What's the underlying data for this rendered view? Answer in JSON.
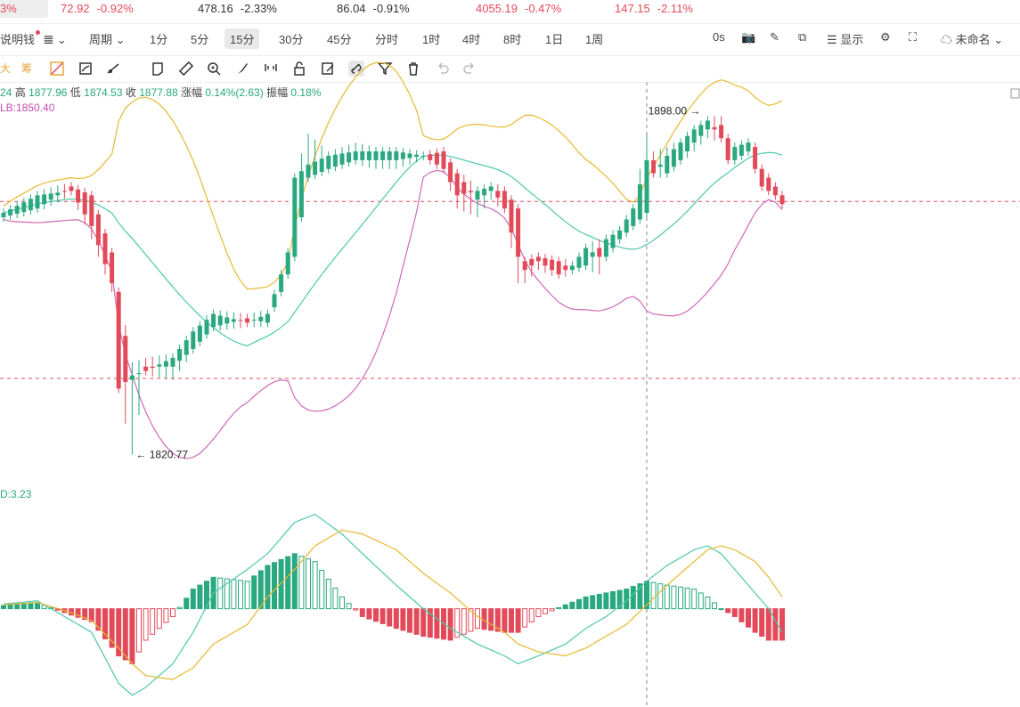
{
  "ticker": [
    {
      "price": "72.92",
      "chg": "-0.92%"
    },
    {
      "price": "478.16",
      "chg": "-2.33%"
    },
    {
      "price": "86.04",
      "chg": "-0.91%"
    },
    {
      "price": "4055.19",
      "chg": "-0.47%"
    },
    {
      "price": "147.15",
      "chg": "-2.11%"
    }
  ],
  "ticker_partial": "3%",
  "toolbar": {
    "symbol": "说明钱",
    "period": "周期",
    "intervals": [
      "1分",
      "5分",
      "15分",
      "30分",
      "45分",
      "分时",
      "1时",
      "4时",
      "8时",
      "1日",
      "1周"
    ],
    "selected": "15分",
    "zero": "0s",
    "display": "显示",
    "unnamed": "未命名"
  },
  "draw_tools_left": [
    "大",
    "筹"
  ],
  "ohlc": {
    "open_tail": "24",
    "high_label": "高",
    "high": "1877.96",
    "low_label": "低",
    "low": "1874.53",
    "close_label": "收",
    "close": "1877.88",
    "chg_label": "涨幅",
    "chg": "0.14%(2.63)",
    "amp_label": "振幅",
    "amp": "0.18%"
  },
  "lb_label": "LB:1850.40",
  "macd_label": "D:3.23",
  "colors": {
    "up": "#2aa87f",
    "down": "#e24a5a",
    "upper": "#e8b931",
    "mid": "#4fc8a8",
    "lower": "#d06ab8",
    "dif": "#4fc8a8",
    "dea": "#e8b931"
  },
  "chart_data": {
    "type": "candlestick",
    "high_mark": "1898.00",
    "low_mark": "1820.77",
    "ylim": [
      1815,
      1905
    ],
    "hlines": [
      1878.6,
      1838.3
    ],
    "crosshair_index": 95,
    "keypoints": [
      [
        0,
        1875,
        1876,
        1877,
        1874
      ],
      [
        5,
        1877,
        1880,
        1881,
        1876
      ],
      [
        10,
        1882,
        1881,
        1883,
        1880
      ],
      [
        13,
        1880,
        1873,
        1881,
        1870
      ],
      [
        16,
        1867,
        1860,
        1868,
        1858
      ],
      [
        17,
        1858,
        1836,
        1859,
        1835
      ],
      [
        19,
        1838,
        1839,
        1842,
        1821
      ],
      [
        21,
        1841,
        1840,
        1843,
        1839
      ],
      [
        25,
        1841,
        1843,
        1844,
        1838
      ],
      [
        28,
        1845,
        1849,
        1850,
        1844
      ],
      [
        31,
        1850,
        1853,
        1854,
        1849
      ],
      [
        36,
        1852,
        1851,
        1853,
        1850
      ],
      [
        39,
        1851,
        1853,
        1854,
        1850
      ],
      [
        41,
        1858,
        1862,
        1863,
        1857
      ],
      [
        42,
        1862,
        1867,
        1868,
        1861
      ],
      [
        43,
        1866,
        1884,
        1885,
        1865
      ],
      [
        45,
        1884,
        1887,
        1894,
        1883
      ],
      [
        48,
        1886,
        1889,
        1890,
        1885
      ],
      [
        52,
        1888,
        1890,
        1892,
        1887
      ],
      [
        55,
        1888,
        1890,
        1891,
        1886
      ],
      [
        58,
        1888,
        1890,
        1891,
        1886
      ],
      [
        62,
        1889,
        1889,
        1890,
        1888
      ],
      [
        65,
        1890,
        1886,
        1891,
        1885
      ],
      [
        67,
        1885,
        1880,
        1886,
        1877
      ],
      [
        70,
        1879,
        1881,
        1882,
        1875
      ],
      [
        72,
        1881,
        1882,
        1883,
        1879
      ],
      [
        74,
        1881,
        1877,
        1882,
        1876
      ],
      [
        76,
        1877,
        1866,
        1878,
        1860
      ],
      [
        77,
        1865,
        1863,
        1866,
        1860
      ],
      [
        79,
        1866,
        1865,
        1867,
        1863
      ],
      [
        82,
        1865,
        1862,
        1866,
        1861
      ],
      [
        84,
        1863,
        1864,
        1865,
        1862
      ],
      [
        86,
        1864,
        1868,
        1869,
        1863
      ],
      [
        88,
        1868,
        1866,
        1870,
        1862
      ],
      [
        89,
        1866,
        1870,
        1871,
        1865
      ],
      [
        91,
        1870,
        1872,
        1873,
        1869
      ],
      [
        93,
        1873,
        1877,
        1878,
        1872
      ],
      [
        95,
        1876,
        1888,
        1894,
        1875
      ],
      [
        96,
        1888,
        1885,
        1890,
        1884
      ],
      [
        98,
        1885,
        1889,
        1891,
        1884
      ],
      [
        100,
        1888,
        1892,
        1893,
        1887
      ],
      [
        102,
        1892,
        1895,
        1896,
        1890
      ],
      [
        104,
        1895,
        1897,
        1898,
        1893
      ],
      [
        106,
        1896,
        1893,
        1898,
        1892
      ],
      [
        107,
        1893,
        1888,
        1894,
        1887
      ],
      [
        108,
        1888,
        1891,
        1892,
        1887
      ],
      [
        110,
        1890,
        1892,
        1893,
        1889
      ],
      [
        111,
        1891,
        1886,
        1892,
        1885
      ],
      [
        112,
        1886,
        1882,
        1887,
        1881
      ],
      [
        114,
        1882,
        1880,
        1883,
        1879
      ],
      [
        115,
        1880,
        1878,
        1881,
        1877
      ]
    ],
    "macd_keypoints": [
      [
        0,
        1.2,
        1.0,
        0.8
      ],
      [
        5,
        2.0,
        1.6,
        1.5
      ],
      [
        10,
        -3,
        -1,
        -1.6
      ],
      [
        13,
        -6,
        -3,
        -3.3
      ],
      [
        17,
        -19,
        -10,
        -12
      ],
      [
        19,
        -22,
        -14,
        -14
      ],
      [
        21,
        -20,
        -17,
        -8
      ],
      [
        25,
        -14,
        -18,
        -2
      ],
      [
        28,
        -6,
        -15,
        5
      ],
      [
        31,
        4,
        -9,
        8
      ],
      [
        36,
        10,
        -4,
        7
      ],
      [
        39,
        14,
        3,
        11
      ],
      [
        43,
        22,
        10,
        14
      ],
      [
        46,
        24,
        16,
        12
      ],
      [
        50,
        19,
        20,
        3
      ],
      [
        53,
        14,
        19,
        -2
      ],
      [
        58,
        6,
        15,
        -5
      ],
      [
        62,
        0,
        9,
        -7
      ],
      [
        66,
        -5,
        4,
        -8
      ],
      [
        70,
        -9,
        -2,
        -5
      ],
      [
        74,
        -12,
        -6,
        -6
      ],
      [
        76,
        -14,
        -9,
        -6
      ],
      [
        79,
        -12,
        -11,
        -2
      ],
      [
        83,
        -9,
        -12,
        1
      ],
      [
        86,
        -5,
        -10,
        3
      ],
      [
        89,
        -2,
        -7,
        4
      ],
      [
        92,
        2,
        -4,
        5
      ],
      [
        95,
        7,
        1,
        7
      ],
      [
        98,
        11,
        6,
        6
      ],
      [
        102,
        15,
        12,
        5
      ],
      [
        104,
        16,
        15,
        3
      ],
      [
        106,
        14,
        16,
        0
      ],
      [
        108,
        10,
        15,
        -2
      ],
      [
        111,
        4,
        12,
        -6
      ],
      [
        113,
        0,
        8,
        -8
      ],
      [
        115,
        -6,
        3,
        -8
      ]
    ]
  }
}
